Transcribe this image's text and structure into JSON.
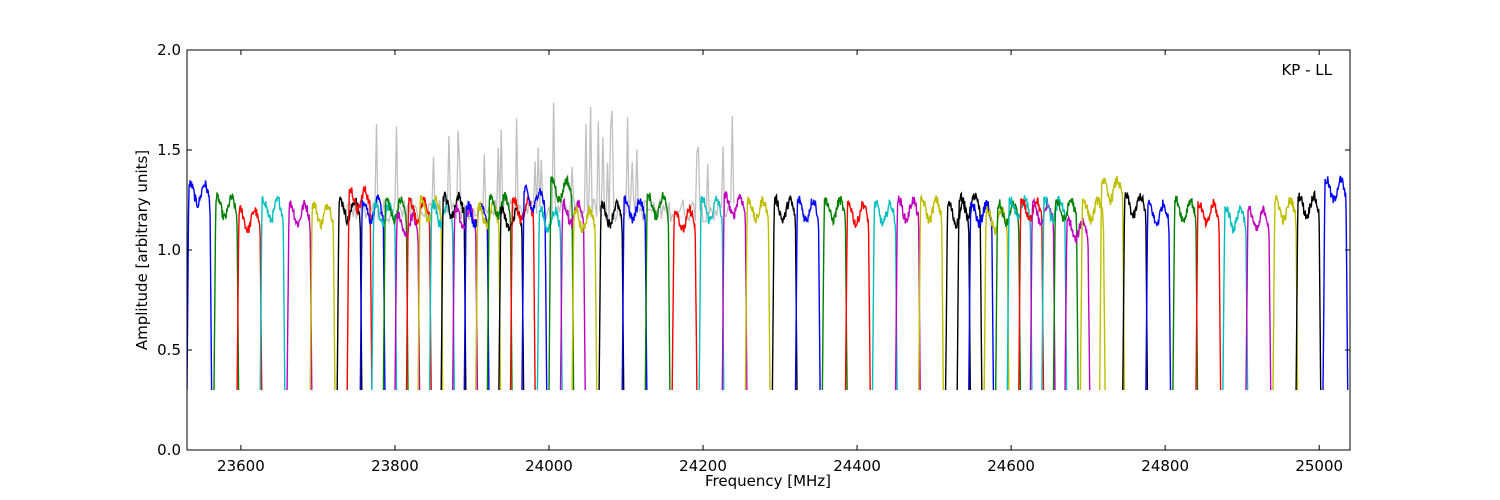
{
  "chart_data": {
    "type": "line",
    "title": "",
    "annotation": "KP - LL",
    "xlabel": "Frequency [MHz]",
    "ylabel": "Amplitude [arbitrary units]",
    "xlim": [
      23530,
      25040
    ],
    "ylim": [
      0.0,
      2.0
    ],
    "x_ticks": [
      23600,
      23800,
      24000,
      24200,
      24400,
      24600,
      24800,
      25000
    ],
    "y_ticks": [
      0.0,
      0.5,
      1.0,
      1.5,
      2.0
    ],
    "y_tick_labels": [
      "0.0",
      "0.5",
      "1.0",
      "1.5",
      "2.0"
    ],
    "grid": false,
    "colors": [
      "#0000ff",
      "#008000",
      "#ff0000",
      "#00bfbf",
      "#bf00bf",
      "#bfbf00",
      "#000000"
    ],
    "background_color": "#c0c0c0",
    "background_range": [
      23730,
      24240
    ],
    "channel_width_mhz": 32,
    "series": [
      {
        "x_start": 23530,
        "color": "#0000ff",
        "level": 1.28
      },
      {
        "x_start": 23565,
        "color": "#008000",
        "level": 1.21
      },
      {
        "x_start": 23595,
        "color": "#ff0000",
        "level": 1.15
      },
      {
        "x_start": 23625,
        "color": "#00bfbf",
        "level": 1.2
      },
      {
        "x_start": 23660,
        "color": "#bf00bf",
        "level": 1.18
      },
      {
        "x_start": 23690,
        "color": "#bfbf00",
        "level": 1.18
      },
      {
        "x_start": 23725,
        "color": "#000000",
        "level": 1.2
      },
      {
        "x_start": 23738,
        "color": "#ff0000",
        "level": 1.25
      },
      {
        "x_start": 23755,
        "color": "#0000ff",
        "level": 1.2
      },
      {
        "x_start": 23770,
        "color": "#00bfbf",
        "level": 1.18
      },
      {
        "x_start": 23785,
        "color": "#008000",
        "level": 1.2
      },
      {
        "x_start": 23800,
        "color": "#bf00bf",
        "level": 1.12
      },
      {
        "x_start": 23815,
        "color": "#ff0000",
        "level": 1.2
      },
      {
        "x_start": 23830,
        "color": "#bfbf00",
        "level": 1.2
      },
      {
        "x_start": 23845,
        "color": "#00bfbf",
        "level": 1.18
      },
      {
        "x_start": 23860,
        "color": "#000000",
        "level": 1.22
      },
      {
        "x_start": 23875,
        "color": "#bf00bf",
        "level": 1.16
      },
      {
        "x_start": 23890,
        "color": "#0000ff",
        "level": 1.18
      },
      {
        "x_start": 23905,
        "color": "#bfbf00",
        "level": 1.17
      },
      {
        "x_start": 23920,
        "color": "#008000",
        "level": 1.22
      },
      {
        "x_start": 23935,
        "color": "#000000",
        "level": 1.15
      },
      {
        "x_start": 23950,
        "color": "#ff0000",
        "level": 1.2
      },
      {
        "x_start": 23965,
        "color": "#0000ff",
        "level": 1.25
      },
      {
        "x_start": 23985,
        "color": "#00bfbf",
        "level": 1.15
      },
      {
        "x_start": 24000,
        "color": "#008000",
        "level": 1.3
      },
      {
        "x_start": 24015,
        "color": "#bf00bf",
        "level": 1.18
      },
      {
        "x_start": 24030,
        "color": "#bfbf00",
        "level": 1.15
      },
      {
        "x_start": 24065,
        "color": "#000000",
        "level": 1.18
      },
      {
        "x_start": 24095,
        "color": "#0000ff",
        "level": 1.2
      },
      {
        "x_start": 24125,
        "color": "#008000",
        "level": 1.22
      },
      {
        "x_start": 24160,
        "color": "#ff0000",
        "level": 1.15
      },
      {
        "x_start": 24195,
        "color": "#00bfbf",
        "level": 1.2
      },
      {
        "x_start": 24225,
        "color": "#bf00bf",
        "level": 1.22
      },
      {
        "x_start": 24255,
        "color": "#bfbf00",
        "level": 1.2
      },
      {
        "x_start": 24290,
        "color": "#000000",
        "level": 1.2
      },
      {
        "x_start": 24320,
        "color": "#0000ff",
        "level": 1.2
      },
      {
        "x_start": 24355,
        "color": "#008000",
        "level": 1.2
      },
      {
        "x_start": 24385,
        "color": "#ff0000",
        "level": 1.18
      },
      {
        "x_start": 24420,
        "color": "#00bfbf",
        "level": 1.18
      },
      {
        "x_start": 24450,
        "color": "#bf00bf",
        "level": 1.2
      },
      {
        "x_start": 24480,
        "color": "#bfbf00",
        "level": 1.2
      },
      {
        "x_start": 24515,
        "color": "#000000",
        "level": 1.18
      },
      {
        "x_start": 24530,
        "color": "#000000",
        "level": 1.22
      },
      {
        "x_start": 24545,
        "color": "#0000ff",
        "level": 1.18
      },
      {
        "x_start": 24565,
        "color": "#bfbf00",
        "level": 1.15
      },
      {
        "x_start": 24580,
        "color": "#008000",
        "level": 1.18
      },
      {
        "x_start": 24595,
        "color": "#00bfbf",
        "level": 1.2
      },
      {
        "x_start": 24610,
        "color": "#ff0000",
        "level": 1.2
      },
      {
        "x_start": 24625,
        "color": "#bf00bf",
        "level": 1.18
      },
      {
        "x_start": 24640,
        "color": "#00bfbf",
        "level": 1.2
      },
      {
        "x_start": 24655,
        "color": "#008000",
        "level": 1.2
      },
      {
        "x_start": 24670,
        "color": "#bf00bf",
        "level": 1.1
      },
      {
        "x_start": 24690,
        "color": "#bfbf00",
        "level": 1.2
      },
      {
        "x_start": 24715,
        "color": "#bfbf00",
        "level": 1.3
      },
      {
        "x_start": 24745,
        "color": "#000000",
        "level": 1.22
      },
      {
        "x_start": 24775,
        "color": "#0000ff",
        "level": 1.18
      },
      {
        "x_start": 24810,
        "color": "#008000",
        "level": 1.2
      },
      {
        "x_start": 24840,
        "color": "#ff0000",
        "level": 1.18
      },
      {
        "x_start": 24875,
        "color": "#00bfbf",
        "level": 1.16
      },
      {
        "x_start": 24905,
        "color": "#bf00bf",
        "level": 1.15
      },
      {
        "x_start": 24940,
        "color": "#bfbf00",
        "level": 1.2
      },
      {
        "x_start": 24970,
        "color": "#000000",
        "level": 1.22
      },
      {
        "x_start": 25005,
        "color": "#0000ff",
        "level": 1.3
      }
    ]
  }
}
